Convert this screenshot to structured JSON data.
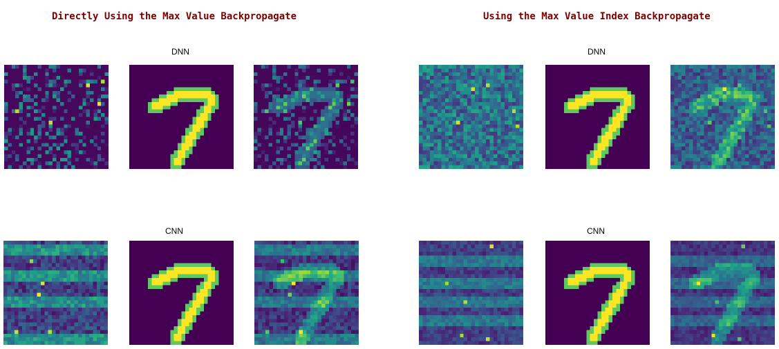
{
  "colors": {
    "title": "#7b0000",
    "background": "#440154",
    "accent": "#fde725"
  },
  "sections": [
    {
      "title": "Directly Using the Max Value Backpropagate",
      "rows": [
        {
          "label": "DNN",
          "panels": [
            "heatmap",
            "digit",
            "overlay"
          ]
        },
        {
          "label": "CNN",
          "panels": [
            "heatmap",
            "digit",
            "overlay"
          ]
        }
      ]
    },
    {
      "title": "Using the Max Value Index Backpropagate",
      "rows": [
        {
          "label": "DNN",
          "panels": [
            "heatmap",
            "digit",
            "overlay"
          ]
        },
        {
          "label": "CNN",
          "panels": [
            "heatmap",
            "digit",
            "overlay"
          ]
        }
      ]
    }
  ]
}
